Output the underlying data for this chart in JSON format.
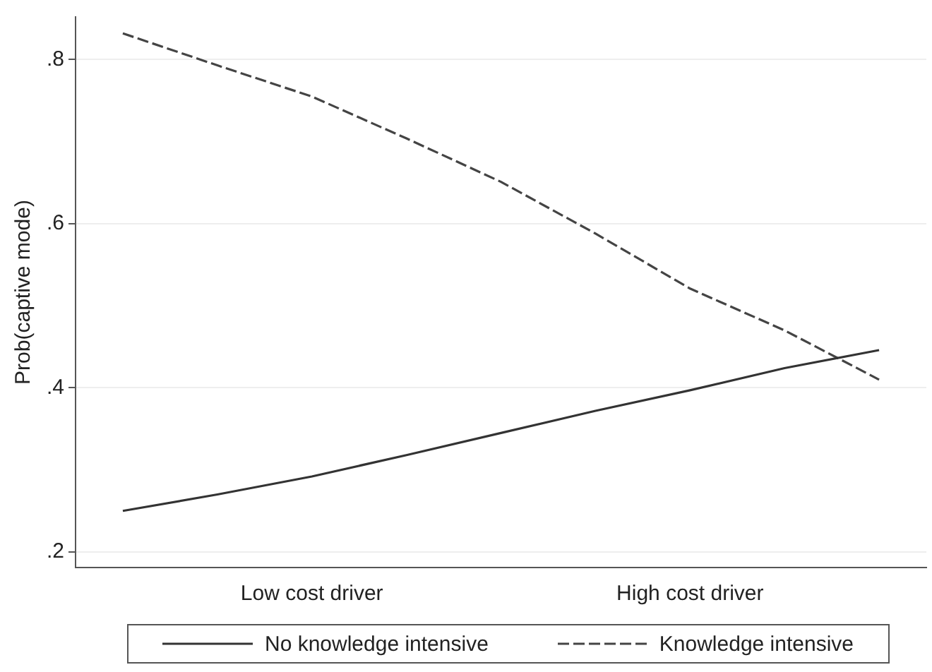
{
  "chart_data": {
    "type": "line",
    "ylabel": "Prob(captive mode)",
    "categories": [
      null,
      null,
      "Low cost driver",
      null,
      null,
      null,
      "High cost driver",
      null,
      null
    ],
    "ylim": [
      0.181,
      0.852
    ],
    "yticks": [
      {
        "value": 0.2,
        "label": ".2"
      },
      {
        "value": 0.4,
        "label": ".4"
      },
      {
        "value": 0.6,
        "label": ".6"
      },
      {
        "value": 0.8,
        "label": ".8"
      }
    ],
    "grid": "y",
    "legend": "bottom",
    "marker": "none",
    "series": [
      {
        "name": "No knowledge intensive",
        "color": "#333333",
        "line_style": "solid",
        "values": [
          0.25,
          0.27,
          0.292,
          0.318,
          0.345,
          0.372,
          0.397,
          0.424,
          0.446
        ]
      },
      {
        "name": "Knowledge intensive",
        "color": "#444444",
        "line_style": "dashed",
        "values": [
          0.832,
          0.793,
          0.755,
          0.704,
          0.651,
          0.588,
          0.521,
          0.47,
          0.41
        ]
      }
    ]
  }
}
